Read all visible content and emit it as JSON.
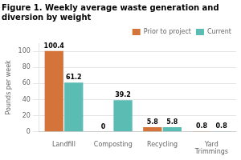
{
  "chart_data": {
    "type": "bar",
    "title": "Figure 1. Weekly average waste generation and\ndiversion by weight",
    "categories": [
      "Landfill",
      "Composting",
      "Recycling",
      "Yard\nTrimmings"
    ],
    "series": [
      {
        "name": "Prior to project",
        "color": "#D4743A",
        "values": [
          100.4,
          0,
          5.8,
          0.8
        ]
      },
      {
        "name": "Current",
        "color": "#5BBCB4",
        "values": [
          61.2,
          39.2,
          5.8,
          0.8
        ]
      }
    ],
    "ylabel": "Pounds per week",
    "ylim": [
      0,
      110
    ],
    "yticks": [
      0,
      20,
      40,
      60,
      80,
      100
    ],
    "grid": true,
    "legend": "upper right",
    "data_labels": true
  }
}
